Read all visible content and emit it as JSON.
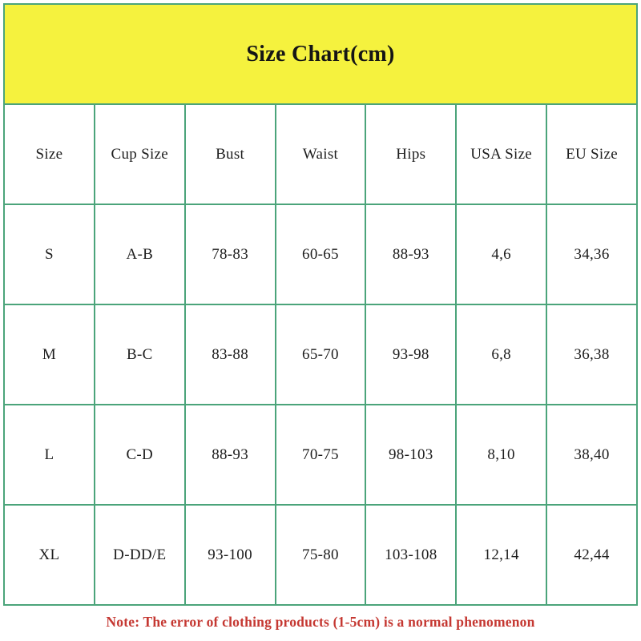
{
  "header": {
    "title": "Size Chart(cm)"
  },
  "chart_data": {
    "type": "table",
    "title": "Size Chart(cm)",
    "unit": "cm",
    "columns": [
      "Size",
      "Cup Size",
      "Bust",
      "Waist",
      "Hips",
      "USA Size",
      "EU Size"
    ],
    "rows": [
      [
        "S",
        "A-B",
        "78-83",
        "60-65",
        "88-93",
        "4,6",
        "34,36"
      ],
      [
        "M",
        "B-C",
        "83-88",
        "65-70",
        "93-98",
        "6,8",
        "36,38"
      ],
      [
        "L",
        "C-D",
        "88-93",
        "70-75",
        "98-103",
        "8,10",
        "38,40"
      ],
      [
        "XL",
        "D-DD/E",
        "93-100",
        "75-80",
        "103-108",
        "12,14",
        "42,44"
      ]
    ],
    "note": "Note: The error of clothing products (1-5cm) is a normal phenomenon"
  },
  "note": "Note: The error of clothing products (1-5cm) is a normal phenomenon",
  "colors": {
    "banner_background": "#f5f23e",
    "table_border": "#4ba47a",
    "note_text": "#c53832",
    "body_text": "#1d1d1d",
    "background": "#ffffff"
  }
}
